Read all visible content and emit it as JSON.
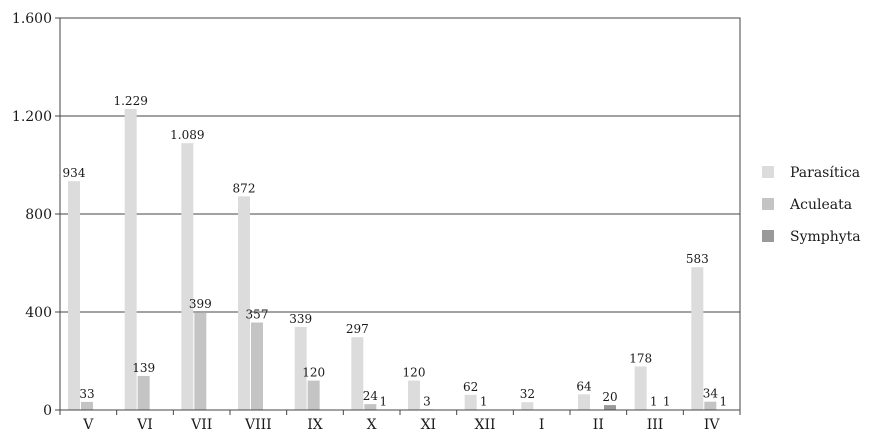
{
  "chart_data": {
    "type": "bar",
    "categories": [
      "V",
      "VI",
      "VII",
      "VIII",
      "IX",
      "X",
      "XI",
      "XII",
      "I",
      "II",
      "III",
      "IV"
    ],
    "series": [
      {
        "name": "Parasítica",
        "color": "#dcdcdc",
        "values": [
          934,
          1229,
          1089,
          872,
          339,
          297,
          120,
          62,
          32,
          64,
          178,
          583
        ],
        "labels": [
          "934",
          "1.229",
          "1.089",
          "872",
          "339",
          "297",
          "120",
          "62",
          "32",
          "64",
          "178",
          "583"
        ]
      },
      {
        "name": "Aculeata",
        "color": "#c4c4c4",
        "values": [
          33,
          139,
          399,
          357,
          120,
          24,
          3,
          1,
          null,
          null,
          1,
          34
        ],
        "labels": [
          "33",
          "139",
          "399",
          "357",
          "120",
          "24",
          "3",
          "1",
          "",
          "",
          "1",
          "34"
        ]
      },
      {
        "name": "Symphyta",
        "color": "#999999",
        "values": [
          null,
          null,
          null,
          null,
          null,
          1,
          null,
          null,
          null,
          20,
          1,
          1
        ],
        "labels": [
          "",
          "",
          "",
          "",
          "",
          "1",
          "",
          "",
          "",
          "20",
          "1",
          "1"
        ]
      }
    ],
    "yticks": [
      0,
      400,
      800,
      1200,
      1600
    ],
    "ytick_labels": [
      "0",
      "400",
      "800",
      "1.200",
      "1.600"
    ],
    "ylim": [
      0,
      1600
    ],
    "grid": true,
    "legend_position": "right",
    "title": "",
    "xlabel": "",
    "ylabel": ""
  }
}
